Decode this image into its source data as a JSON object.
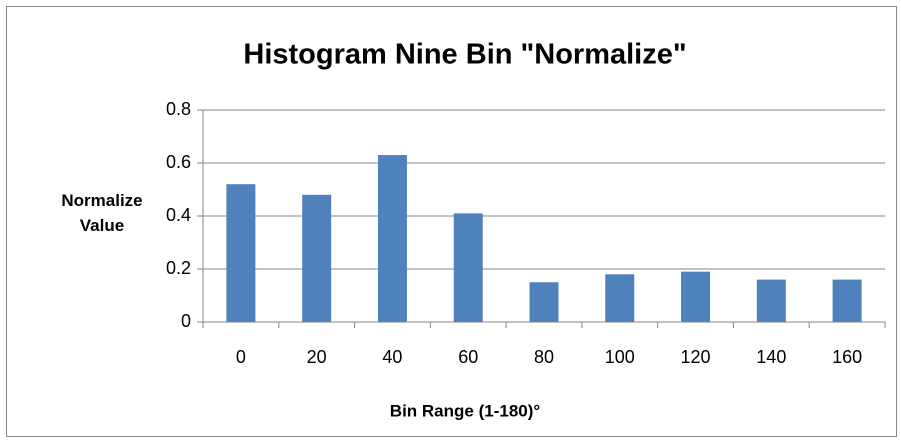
{
  "chart_data": {
    "type": "bar",
    "title": "Histogram Nine Bin \"Normalize\"",
    "x_label": "Bin Range (1-180)°",
    "y_label": "Normalize Value",
    "categories": [
      "0",
      "20",
      "40",
      "60",
      "80",
      "100",
      "120",
      "140",
      "160"
    ],
    "values": [
      0.52,
      0.48,
      0.63,
      0.41,
      0.15,
      0.18,
      0.19,
      0.16,
      0.16
    ],
    "color": "#4f81bd",
    "ylim": [
      0,
      0.8
    ],
    "yticks": [
      0,
      0.2,
      0.4,
      0.6,
      0.8
    ],
    "grid": true
  }
}
